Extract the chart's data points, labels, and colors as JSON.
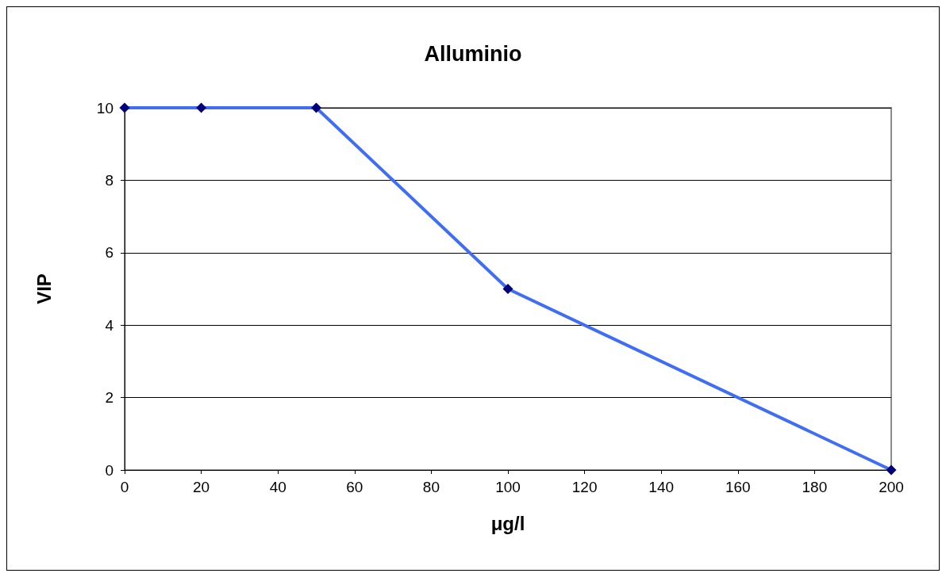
{
  "chart_data": {
    "type": "line",
    "title": "Alluminio",
    "xlabel": "μg/l",
    "ylabel": "VIP",
    "x": [
      0,
      20,
      50,
      100,
      200
    ],
    "series": [
      {
        "color": "#3f6df5",
        "values": [
          10,
          10,
          10,
          5,
          0
        ]
      }
    ],
    "xlim": [
      0,
      200
    ],
    "xticks": [
      0,
      20,
      40,
      60,
      80,
      100,
      120,
      140,
      160,
      180,
      200
    ],
    "ylim": [
      0,
      10
    ],
    "yticks": [
      0,
      2,
      4,
      6,
      8,
      10
    ],
    "grid": "y",
    "marker": "diamond",
    "line_style": "solid"
  }
}
